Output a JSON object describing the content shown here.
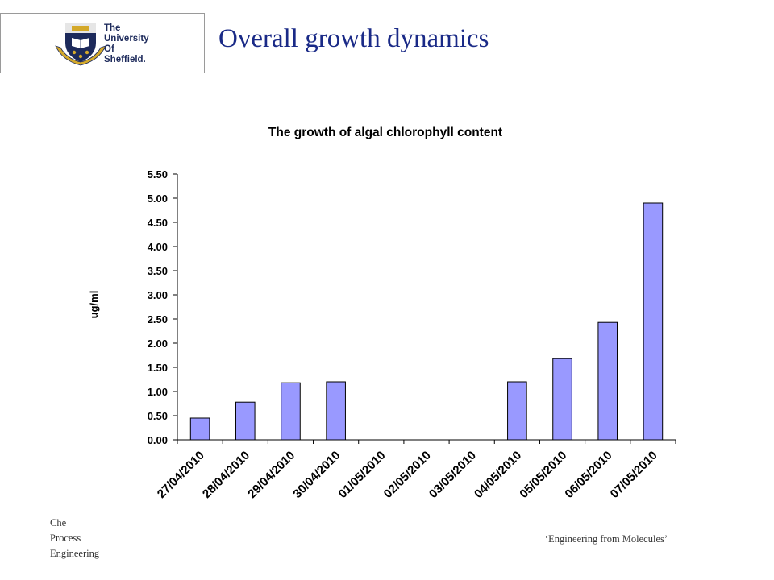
{
  "header": {
    "title": "Overall growth dynamics",
    "logo": {
      "line1": "The",
      "line2": "University",
      "line3": "Of",
      "line4": "Sheffield.",
      "crest_icon": "university-crest"
    }
  },
  "footer": {
    "left_line1": "Che",
    "left_line2": "Process",
    "left_line3": "Engineering",
    "right_text": "‘Engineering from Molecules’"
  },
  "colors": {
    "title": "#1a2a87",
    "bar_fill": "#9999ff",
    "bar_stroke": "#000000",
    "crest_blue": "#1d2a5b",
    "crest_gold": "#d4a92a"
  },
  "chart_data": {
    "type": "bar",
    "title": "The growth of algal chlorophyll content",
    "xlabel": "",
    "ylabel": "ug/ml",
    "categories": [
      "27/04/2010",
      "28/04/2010",
      "29/04/2010",
      "30/04/2010",
      "01/05/2010",
      "02/05/2010",
      "03/05/2010",
      "04/05/2010",
      "05/05/2010",
      "06/05/2010",
      "07/05/2010"
    ],
    "values": [
      0.45,
      0.78,
      1.18,
      1.2,
      0,
      0,
      0,
      1.2,
      1.68,
      2.43,
      4.9
    ],
    "ylim": [
      0,
      5.5
    ],
    "yticks": [
      "0.00",
      "0.50",
      "1.00",
      "1.50",
      "2.00",
      "2.50",
      "3.00",
      "3.50",
      "4.00",
      "4.50",
      "5.00",
      "5.50"
    ],
    "grid": false,
    "legend": "none"
  }
}
